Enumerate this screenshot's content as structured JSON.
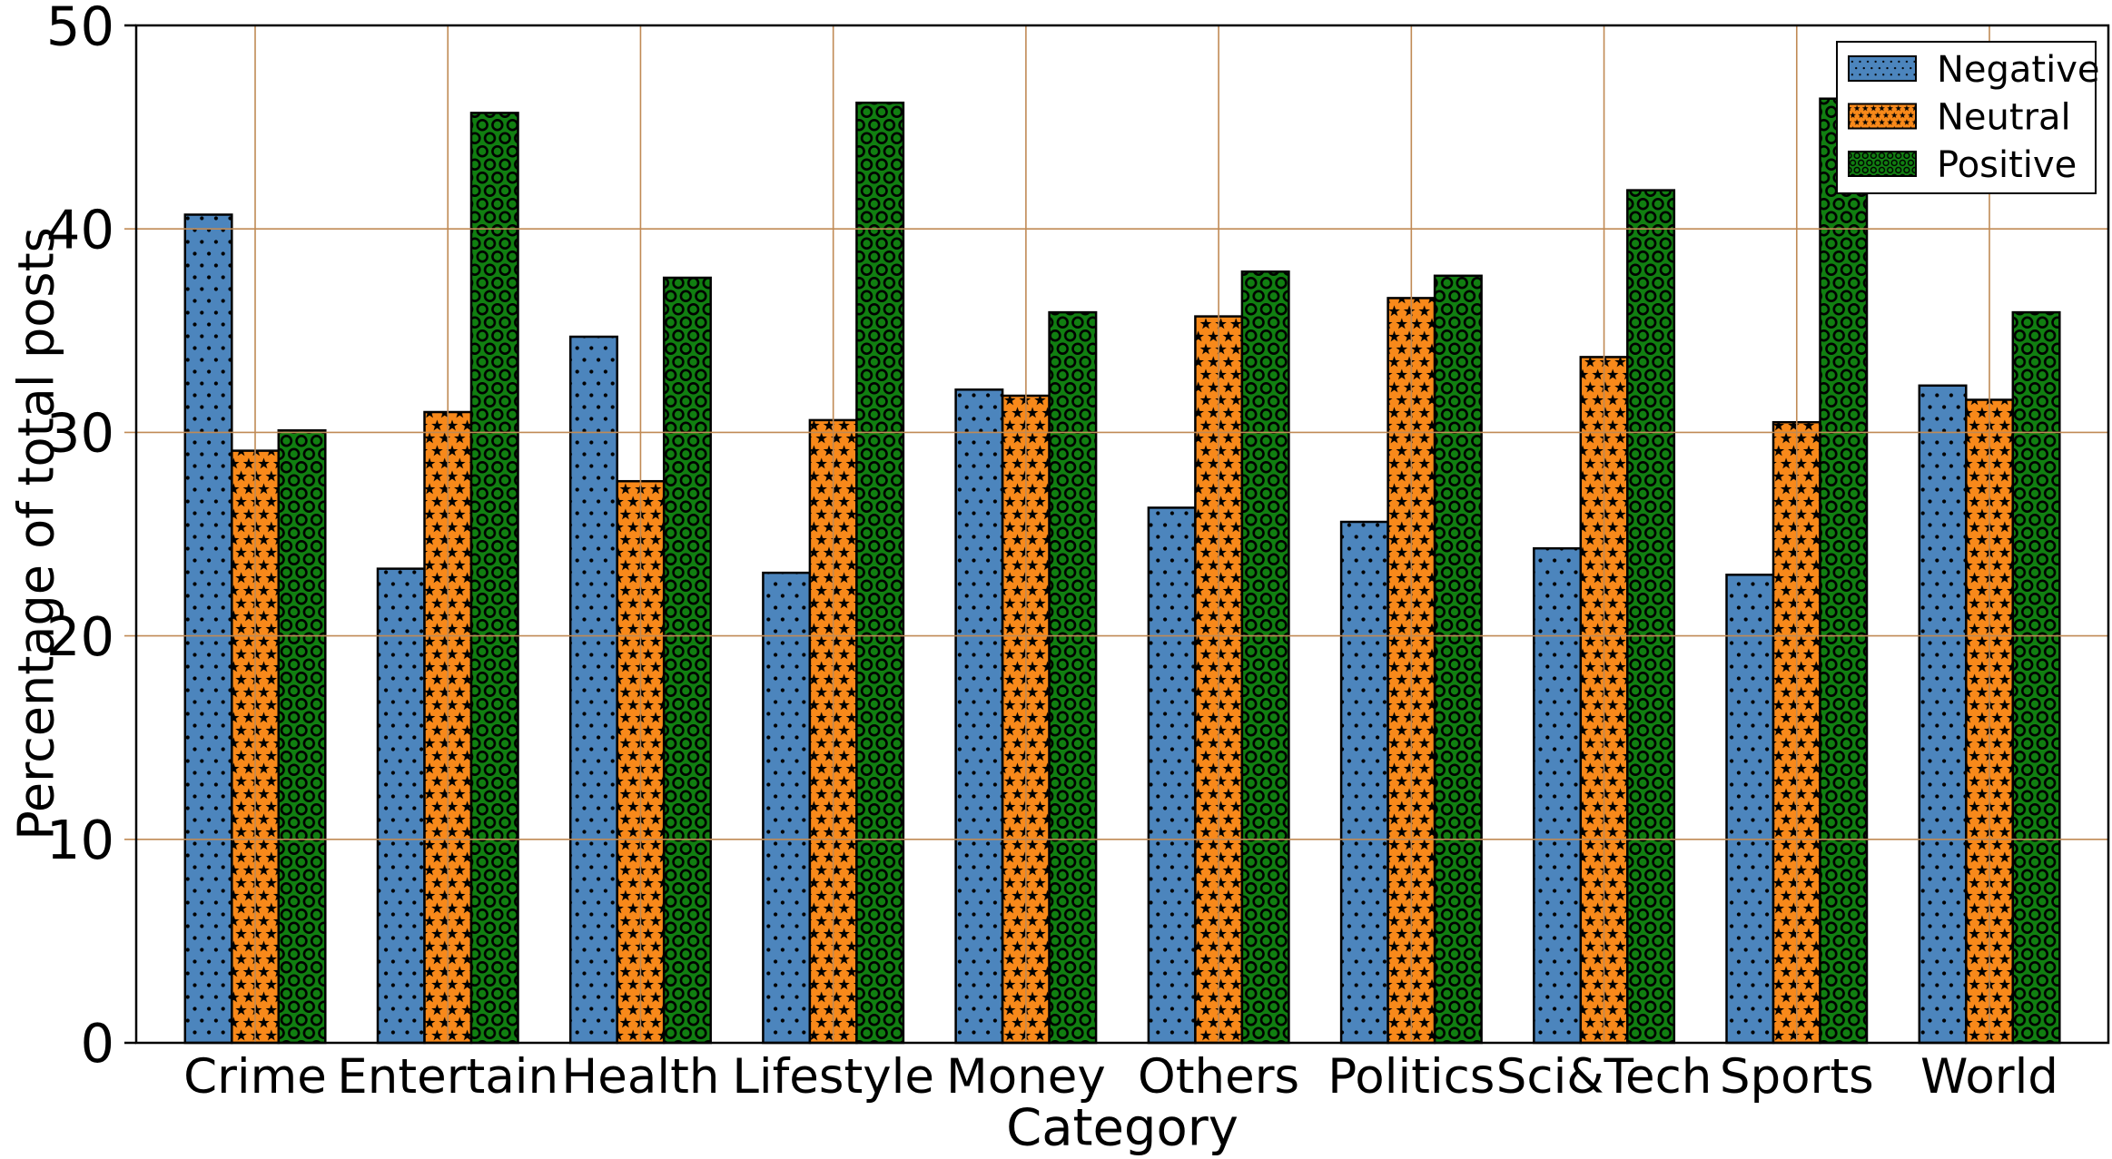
{
  "figure": {
    "background": "#ffffff"
  },
  "chart_data": {
    "type": "bar",
    "title": "",
    "xlabel": "Category",
    "ylabel": "Percentage of total posts",
    "categories": [
      "Crime",
      "Entertain",
      "Health",
      "Lifestyle",
      "Money",
      "Others",
      "Politics",
      "Sci&Tech",
      "Sports",
      "World"
    ],
    "series": [
      {
        "name": "Negative",
        "color": "#4c85bd",
        "hatch": "dots",
        "values": [
          40.7,
          23.3,
          34.7,
          23.1,
          32.1,
          26.3,
          25.6,
          24.3,
          23.0,
          32.3
        ]
      },
      {
        "name": "Neutral",
        "color": "#f8891a",
        "hatch": "stars",
        "values": [
          29.1,
          31.0,
          27.6,
          30.6,
          31.8,
          35.7,
          36.6,
          33.7,
          30.5,
          31.6
        ]
      },
      {
        "name": "Positive",
        "color": "#117f11",
        "hatch": "circles",
        "values": [
          30.1,
          45.7,
          37.6,
          46.2,
          35.9,
          37.9,
          37.7,
          41.9,
          46.4,
          35.9
        ]
      }
    ],
    "ylim": [
      0,
      50
    ],
    "yticks": [
      0,
      10,
      20,
      30,
      40,
      50
    ],
    "grid": true,
    "grid_on_top": true,
    "grid_color": "#c08a55",
    "axis_color": "#000000",
    "bar_edge_color": "#000000",
    "legend": {
      "position": "upper right",
      "labels": [
        "Negative",
        "Neutral",
        "Positive"
      ]
    }
  }
}
